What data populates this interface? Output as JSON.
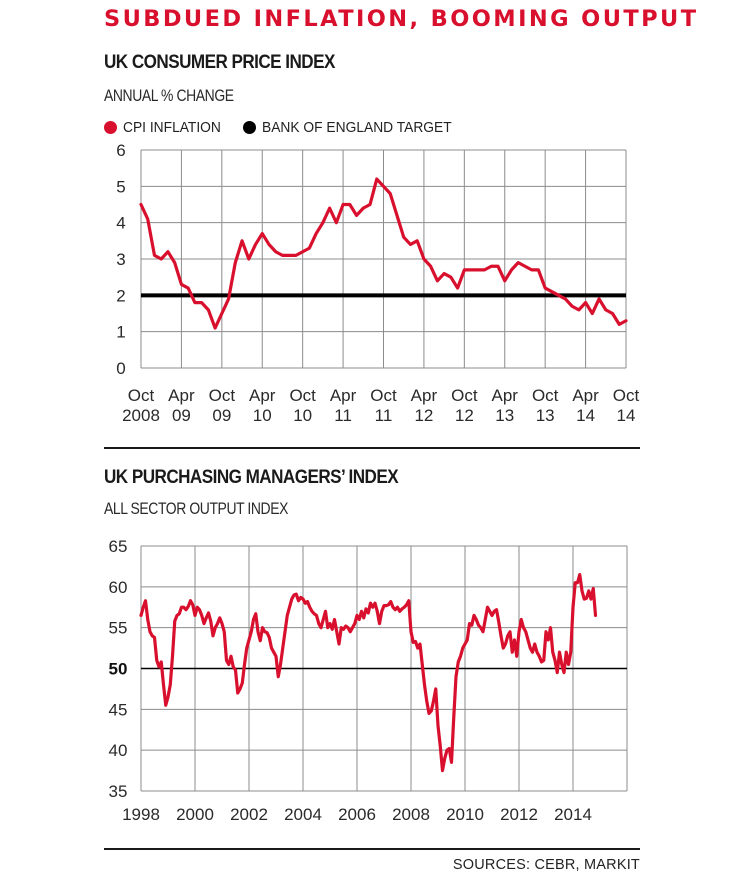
{
  "header": {
    "title": "SUBDUED INFLATION, BOOMING OUTPUT",
    "sources": "SOURCES: CEBR, MARKIT",
    "accent_color": "#d9102d"
  },
  "chart_data": [
    {
      "type": "line",
      "title": "UK CONSUMER PRICE INDEX",
      "subtitle": "ANNUAL % CHANGE",
      "xlabel": "",
      "ylabel": "",
      "ylim": [
        0,
        6
      ],
      "yticks": [
        0,
        1,
        2,
        3,
        4,
        5,
        6
      ],
      "grid": true,
      "legend_position": "top-left",
      "x_range": [
        "Oct 2008",
        "Oct 2014"
      ],
      "x_ticks": [
        {
          "line1": "Oct",
          "line2": "2008"
        },
        {
          "line1": "Apr",
          "line2": "09"
        },
        {
          "line1": "Oct",
          "line2": "09"
        },
        {
          "line1": "Apr",
          "line2": "10"
        },
        {
          "line1": "Oct",
          "line2": "10"
        },
        {
          "line1": "Apr",
          "line2": "11"
        },
        {
          "line1": "Oct",
          "line2": "11"
        },
        {
          "line1": "Apr",
          "line2": "12"
        },
        {
          "line1": "Oct",
          "line2": "12"
        },
        {
          "line1": "Apr",
          "line2": "13"
        },
        {
          "line1": "Oct",
          "line2": "13"
        },
        {
          "line1": "Apr",
          "line2": "14"
        },
        {
          "line1": "Oct",
          "line2": "14"
        }
      ],
      "series": [
        {
          "name": "CPI INFLATION",
          "color": "#d9102d",
          "frequency": "monthly",
          "start": "Oct 2008",
          "values": [
            4.5,
            4.1,
            3.1,
            3.0,
            3.2,
            2.9,
            2.3,
            2.2,
            1.8,
            1.8,
            1.6,
            1.1,
            1.5,
            1.9,
            2.9,
            3.5,
            3.0,
            3.4,
            3.7,
            3.4,
            3.2,
            3.1,
            3.1,
            3.1,
            3.2,
            3.3,
            3.7,
            4.0,
            4.4,
            4.0,
            4.5,
            4.5,
            4.2,
            4.4,
            4.5,
            5.2,
            5.0,
            4.8,
            4.2,
            3.6,
            3.4,
            3.5,
            3.0,
            2.8,
            2.4,
            2.6,
            2.5,
            2.2,
            2.7,
            2.7,
            2.7,
            2.7,
            2.8,
            2.8,
            2.4,
            2.7,
            2.9,
            2.8,
            2.7,
            2.7,
            2.2,
            2.1,
            2.0,
            1.9,
            1.7,
            1.6,
            1.8,
            1.5,
            1.9,
            1.6,
            1.5,
            1.2,
            1.3
          ]
        },
        {
          "name": "BANK OF ENGLAND TARGET",
          "color": "#000000",
          "values": [
            2,
            2
          ]
        }
      ]
    },
    {
      "type": "line",
      "title": "UK PURCHASING MANAGERS’ INDEX",
      "subtitle": "ALL SECTOR OUTPUT INDEX",
      "xlabel": "",
      "ylabel": "",
      "ylim": [
        35,
        65
      ],
      "yticks": [
        35,
        40,
        45,
        50,
        55,
        60,
        65
      ],
      "highlight_ytick": 50,
      "grid": true,
      "x_range": [
        1998,
        2016
      ],
      "x_ticks": [
        "1998",
        "2000",
        "2002",
        "2004",
        "2006",
        "2008",
        "2010",
        "2012",
        "2014",
        ""
      ],
      "reference_line": 50,
      "series": [
        {
          "name": "ALL SECTOR OUTPUT INDEX",
          "color": "#d9102d",
          "frequency": "monthly",
          "start": "Jan 1998",
          "values": [
            56.5,
            57.5,
            58.3,
            56,
            54.5,
            54,
            53.8,
            51,
            50.2,
            50.8,
            48,
            45.5,
            46.5,
            48,
            51.5,
            55.8,
            56.5,
            56.7,
            57.5,
            57.5,
            57.2,
            57.6,
            58.3,
            57.8,
            56.5,
            57.5,
            57.2,
            56.5,
            55.5,
            56.2,
            56.8,
            55.8,
            54,
            55,
            55.5,
            56.2,
            55.5,
            54.5,
            51,
            50.5,
            51.5,
            50.2,
            49.8,
            47,
            47.5,
            48.2,
            50.5,
            52.5,
            53.5,
            54.5,
            56,
            56.7,
            54.5,
            53.4,
            55,
            54.5,
            54.4,
            53.8,
            52.5,
            52,
            51.5,
            49,
            50.5,
            52.5,
            54.5,
            56.5,
            57.5,
            58.5,
            59,
            59.1,
            58.3,
            58.7,
            58.5,
            58,
            58.2,
            57.5,
            57,
            56.7,
            56.5,
            55.5,
            55,
            56,
            57,
            55,
            55.5,
            54.8,
            56,
            54.5,
            53,
            55,
            54.8,
            55.2,
            55,
            54.5,
            55,
            55.5,
            56.5,
            56,
            57,
            56.2,
            57.3,
            56.8,
            58,
            57.5,
            58,
            57,
            55.5,
            57,
            57.7,
            57.7,
            57.8,
            58.2,
            57.5,
            57.2,
            57.5,
            57,
            57.3,
            57.5,
            57.8,
            58.3,
            54.5,
            53.2,
            53.3,
            52.5,
            53,
            50.5,
            48,
            46,
            44.5,
            44.8,
            46,
            47.5,
            43,
            40.5,
            37.5,
            39,
            40,
            40.2,
            38.5,
            44,
            49,
            50.8,
            51.5,
            52.5,
            53,
            53.5,
            55.5,
            55.3,
            56.5,
            56,
            55.3,
            55,
            54.5,
            56,
            57.5,
            57,
            56.5,
            57,
            57.2,
            55.7,
            54,
            52.5,
            53,
            54,
            54.5,
            52,
            53.5,
            51.5,
            54.5,
            56,
            55,
            54.5,
            53.5,
            52.5,
            52,
            53,
            52,
            51.5,
            50.8,
            51,
            54.5,
            53.5,
            55,
            52,
            51,
            49.5,
            52,
            50.5,
            49.5,
            52,
            50.5,
            52,
            57.5,
            60.5,
            60.5,
            61.5,
            59.5,
            58.5,
            58.6,
            59.5,
            58.5,
            59.8,
            56.5
          ]
        }
      ]
    }
  ]
}
